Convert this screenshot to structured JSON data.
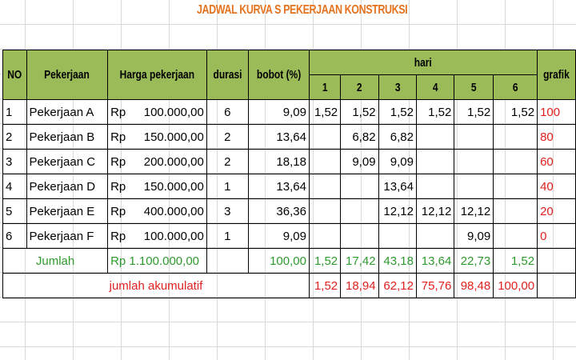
{
  "title": "JADWAL KURVA S PEKERJAAN KONSTRUKSI",
  "headers": {
    "no": "NO",
    "pekerjaan": "Pekerjaan",
    "harga": "Harga pekerjaan",
    "durasi": "durasi",
    "bobot": "bobot (%)",
    "hari": "hari",
    "grafik": "grafik",
    "days": [
      "1",
      "2",
      "3",
      "4",
      "5",
      "6"
    ]
  },
  "rows": [
    {
      "no": "1",
      "name": "Pekerjaan A",
      "rp": "Rp",
      "price": "100.000,00",
      "durasi": "6",
      "bobot": "9,09",
      "days": [
        "1,52",
        "1,52",
        "1,52",
        "1,52",
        "1,52",
        "1,52"
      ],
      "grafik": "100"
    },
    {
      "no": "2",
      "name": "Pekerjaan B",
      "rp": "Rp",
      "price": "150.000,00",
      "durasi": "2",
      "bobot": "13,64",
      "days": [
        "",
        "6,82",
        "6,82",
        "",
        "",
        ""
      ],
      "grafik": "80"
    },
    {
      "no": "3",
      "name": "Pekerjaan C",
      "rp": "Rp",
      "price": "200.000,00",
      "durasi": "2",
      "bobot": "18,18",
      "days": [
        "",
        "9,09",
        "9,09",
        "",
        "",
        ""
      ],
      "grafik": "60"
    },
    {
      "no": "4",
      "name": "Pekerjaan D",
      "rp": "Rp",
      "price": "150.000,00",
      "durasi": "1",
      "bobot": "13,64",
      "days": [
        "",
        "",
        "13,64",
        "",
        "",
        ""
      ],
      "grafik": "40"
    },
    {
      "no": "5",
      "name": "Pekerjaan E",
      "rp": "Rp",
      "price": "400.000,00",
      "durasi": "3",
      "bobot": "36,36",
      "days": [
        "",
        "",
        "12,12",
        "12,12",
        "12,12",
        ""
      ],
      "grafik": "20"
    },
    {
      "no": "6",
      "name": "Pekerjaan F",
      "rp": "Rp",
      "price": "100.000,00",
      "durasi": "1",
      "bobot": "9,09",
      "days": [
        "",
        "",
        "",
        "",
        "9,09",
        ""
      ],
      "grafik": "0"
    }
  ],
  "jumlah": {
    "label": "Jumlah",
    "price": "Rp 1.100.000,00",
    "bobot": "100,00",
    "days": [
      "1,52",
      "17,42",
      "43,18",
      "13,64",
      "22,73",
      "1,52"
    ]
  },
  "akumulatif": {
    "label": "jumlah akumulatif",
    "days": [
      "1,52",
      "18,94",
      "62,12",
      "75,76",
      "98,48",
      "100,00"
    ]
  },
  "colors": {
    "header_bg": "#9bbb59",
    "title": "#e4731f",
    "green": "#2e9a2e",
    "red": "#e02020"
  }
}
